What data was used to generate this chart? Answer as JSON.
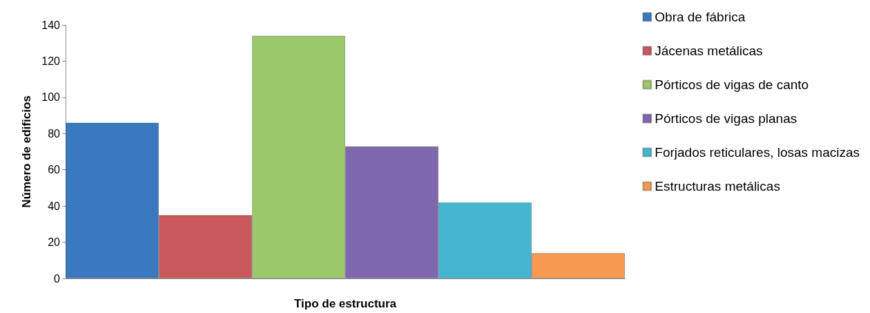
{
  "chart_data": {
    "type": "bar",
    "xlabel": "Tipo de estructura",
    "ylabel": "Número de edificios",
    "categories": [
      null
    ],
    "series": [
      {
        "name": "Obra de fábrica",
        "color": "#3a78c0",
        "values": [
          86
        ]
      },
      {
        "name": "Jácenas metálicas",
        "color": "#c9585a",
        "values": [
          35
        ]
      },
      {
        "name": "Pórticos de vigas de canto",
        "color": "#9bc86b",
        "values": [
          134
        ]
      },
      {
        "name": "Pórticos de vigas planas",
        "color": "#7f68ae",
        "values": [
          73
        ]
      },
      {
        "name": "Forjados reticulares, losas macizas",
        "color": "#45b6d0",
        "values": [
          42
        ]
      },
      {
        "name": "Estructuras metálicas",
        "color": "#f59a4e",
        "values": [
          14
        ]
      }
    ],
    "ylim": [
      0,
      140
    ],
    "yticks": [
      0,
      20,
      40,
      60,
      80,
      100,
      120,
      140
    ],
    "grid": false,
    "legend": "right"
  }
}
